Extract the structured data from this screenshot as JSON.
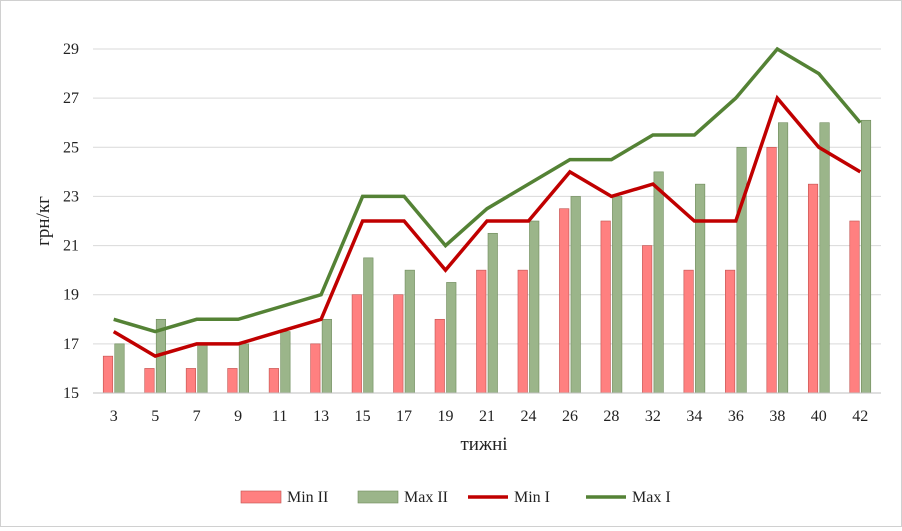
{
  "chart_data": {
    "type": "bar",
    "title": "",
    "xlabel": "тижні",
    "ylabel": "грн/кг",
    "ylim": [
      15,
      29
    ],
    "yticks": [
      15,
      17,
      19,
      21,
      23,
      25,
      27,
      29
    ],
    "grid": true,
    "legend": "bottom",
    "categories": [
      "3",
      "5",
      "7",
      "9",
      "11",
      "13",
      "15",
      "17",
      "19",
      "21",
      "24",
      "26",
      "28",
      "32",
      "34",
      "36",
      "38",
      "40",
      "42"
    ],
    "series": [
      {
        "name": "Min II",
        "kind": "bar",
        "color": "#ff8080",
        "values": [
          16.5,
          16,
          16,
          16,
          16,
          17,
          19,
          19,
          18,
          20,
          20,
          22.5,
          22,
          21,
          20,
          20,
          25,
          23.5,
          22
        ]
      },
      {
        "name": "Max II",
        "kind": "bar",
        "color": "#9bb58a",
        "values": [
          17,
          18,
          17,
          17,
          17.5,
          18,
          20.5,
          20,
          19.5,
          21.5,
          22,
          23,
          23,
          24,
          23.5,
          25,
          26,
          26,
          26.1
        ]
      },
      {
        "name": "Min I",
        "kind": "line",
        "color": "#c00000",
        "values": [
          17.5,
          16.5,
          17,
          17,
          17.5,
          18,
          22,
          22,
          20,
          22,
          22,
          24,
          23,
          23.5,
          22,
          22,
          27,
          25,
          24
        ]
      },
      {
        "name": "Max I",
        "kind": "line",
        "color": "#548235",
        "values": [
          18,
          17.5,
          18,
          18,
          18.5,
          19,
          23,
          23,
          21,
          22.5,
          23.5,
          24.5,
          24.5,
          25.5,
          25.5,
          27,
          29,
          28,
          26
        ]
      }
    ]
  }
}
